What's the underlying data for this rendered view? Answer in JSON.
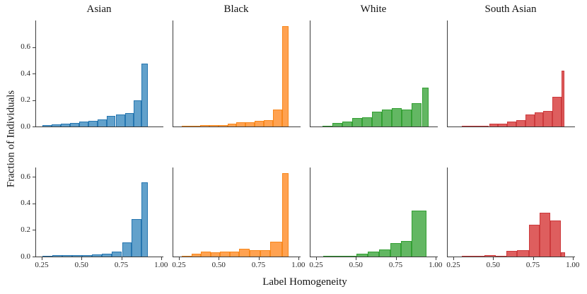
{
  "chart_data": {
    "type": "bar",
    "subtype": "histogram-grid",
    "title": "",
    "xlabel": "Label Homogeneity",
    "ylabel": "Fraction of Individuals",
    "columns": [
      "Asian",
      "Black",
      "White",
      "South Asian"
    ],
    "x_ticks": [
      0.25,
      0.5,
      0.75,
      1.0
    ],
    "x_tick_labels": [
      "0.25",
      "0.50",
      "0.75",
      "1.00"
    ],
    "y_ticks": [
      0.0,
      0.2,
      0.4,
      0.6
    ],
    "y_tick_labels": [
      "0.0",
      "0.2",
      "0.4",
      "0.6"
    ],
    "xlim": [
      0.21,
      1.01
    ],
    "grid": false,
    "legend": false,
    "rows": [
      {
        "ylim": [
          0,
          0.8
        ]
      },
      {
        "ylim": [
          0,
          0.67
        ]
      }
    ],
    "colors": {
      "Asian": {
        "fill": "#62A1CB",
        "edge": "#2676B0"
      },
      "Black": {
        "fill": "#FFA251",
        "edge": "#F8871B"
      },
      "White": {
        "fill": "#63B763",
        "edge": "#339F33"
      },
      "South Asian": {
        "fill": "#DE5E5E",
        "edge": "#CC3A3C"
      }
    },
    "spine_color": "#3c3c3c",
    "panels": [
      {
        "row": 0,
        "col": 0,
        "group": "Asian",
        "bin_edges": [
          0.25,
          0.308,
          0.365,
          0.423,
          0.48,
          0.538,
          0.595,
          0.653,
          0.71,
          0.768,
          0.825,
          0.87,
          0.91
        ],
        "values": [
          0.011,
          0.014,
          0.02,
          0.027,
          0.037,
          0.045,
          0.053,
          0.082,
          0.093,
          0.103,
          0.195,
          0.475
        ]
      },
      {
        "row": 0,
        "col": 1,
        "group": "Black",
        "bin_edges": [
          0.265,
          0.322,
          0.379,
          0.436,
          0.493,
          0.55,
          0.607,
          0.664,
          0.721,
          0.778,
          0.835,
          0.895,
          0.935
        ],
        "values": [
          0.005,
          0.006,
          0.009,
          0.013,
          0.013,
          0.02,
          0.03,
          0.033,
          0.045,
          0.05,
          0.126,
          0.755
        ]
      },
      {
        "row": 0,
        "col": 2,
        "group": "White",
        "bin_edges": [
          0.285,
          0.3475,
          0.41,
          0.4725,
          0.535,
          0.5975,
          0.66,
          0.7225,
          0.785,
          0.8475,
          0.91,
          0.95
        ],
        "values": [
          0.007,
          0.025,
          0.036,
          0.062,
          0.067,
          0.11,
          0.127,
          0.138,
          0.127,
          0.177,
          0.293
        ]
      },
      {
        "row": 0,
        "col": 3,
        "group": "South Asian",
        "bin_edges": [
          0.3,
          0.357,
          0.414,
          0.47,
          0.527,
          0.584,
          0.641,
          0.698,
          0.755,
          0.811,
          0.868,
          0.925,
          0.945
        ],
        "values": [
          0.004,
          0.005,
          0.008,
          0.02,
          0.022,
          0.035,
          0.05,
          0.09,
          0.105,
          0.12,
          0.225,
          0.42
        ]
      },
      {
        "row": 1,
        "col": 0,
        "group": "Asian",
        "bin_edges": [
          0.25,
          0.3125,
          0.375,
          0.4375,
          0.5,
          0.5625,
          0.625,
          0.6875,
          0.75,
          0.81,
          0.87,
          0.91
        ],
        "values": [
          0.008,
          0.012,
          0.01,
          0.01,
          0.013,
          0.015,
          0.022,
          0.035,
          0.105,
          0.28,
          0.56
        ]
      },
      {
        "row": 1,
        "col": 1,
        "group": "Black",
        "bin_edges": [
          0.265,
          0.325,
          0.385,
          0.445,
          0.505,
          0.565,
          0.625,
          0.69,
          0.755,
          0.82,
          0.895,
          0.935
        ],
        "values": [
          0.006,
          0.02,
          0.038,
          0.03,
          0.038,
          0.038,
          0.058,
          0.048,
          0.046,
          0.11,
          0.63
        ]
      },
      {
        "row": 1,
        "col": 2,
        "group": "White",
        "bin_edges": [
          0.29,
          0.36,
          0.43,
          0.5,
          0.57,
          0.64,
          0.71,
          0.78,
          0.845,
          0.94
        ],
        "values": [
          0.004,
          0.004,
          0.005,
          0.02,
          0.035,
          0.055,
          0.1,
          0.115,
          0.345
        ]
      },
      {
        "row": 1,
        "col": 3,
        "group": "South Asian",
        "bin_edges": [
          0.3,
          0.37,
          0.44,
          0.51,
          0.58,
          0.646,
          0.72,
          0.787,
          0.854,
          0.92,
          0.948
        ],
        "values": [
          0.004,
          0.008,
          0.01,
          0.006,
          0.04,
          0.05,
          0.24,
          0.33,
          0.27,
          0.034
        ]
      }
    ]
  }
}
